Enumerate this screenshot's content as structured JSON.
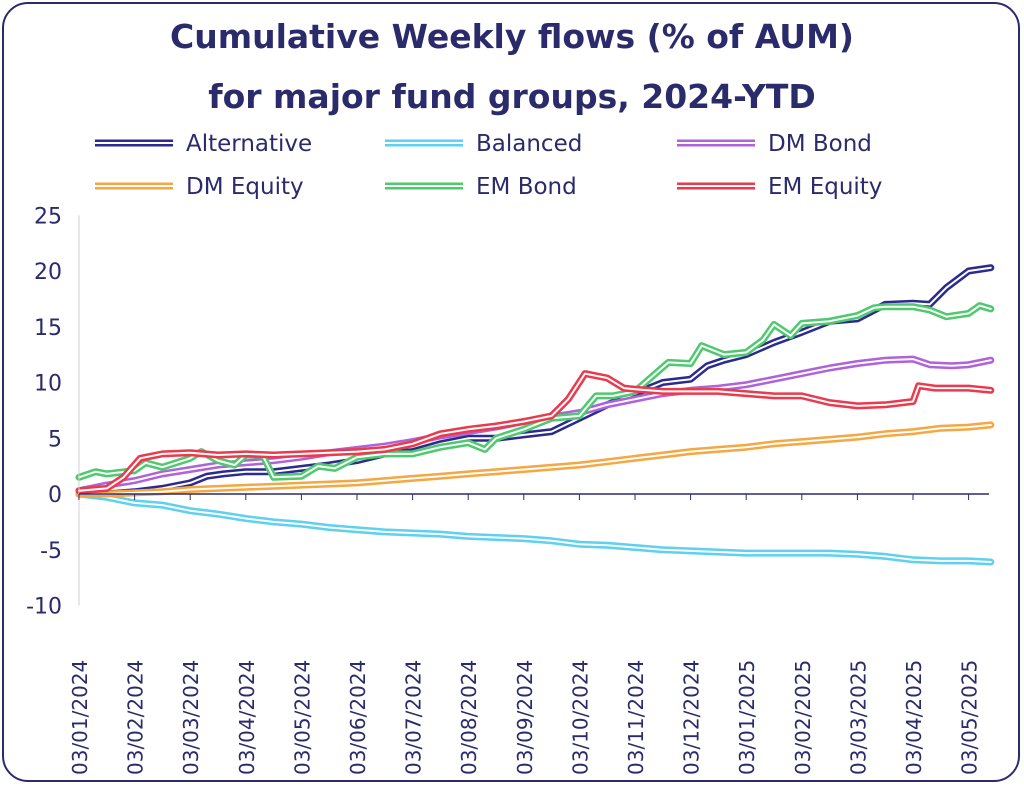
{
  "chart_data": {
    "type": "line",
    "title_lines": [
      "Cumulative Weekly flows (% of AUM)",
      "for major fund groups, 2024-YTD"
    ],
    "xlabel": "",
    "ylabel": "",
    "ylim": [
      -10,
      25
    ],
    "yticks": [
      25,
      20,
      15,
      10,
      5,
      0,
      -5,
      -10
    ],
    "grid": false,
    "legend_position": "top",
    "x_tick_labels": [
      "03/01/2024",
      "03/02/2024",
      "03/03/2024",
      "03/04/2024",
      "03/05/2024",
      "03/06/2024",
      "03/07/2024",
      "03/08/2024",
      "03/09/2024",
      "03/10/2024",
      "03/11/2024",
      "03/12/2024",
      "03/01/2025",
      "03/02/2025",
      "03/03/2025",
      "03/04/2025",
      "03/05/2025"
    ],
    "series": [
      {
        "name": "Alternative",
        "color": "#2b2a8f",
        "x_end": 16.4,
        "points": [
          [
            0,
            0
          ],
          [
            0.5,
            0
          ],
          [
            1,
            0.2
          ],
          [
            1.5,
            0.5
          ],
          [
            2,
            1
          ],
          [
            2.3,
            1.6
          ],
          [
            2.6,
            1.8
          ],
          [
            3,
            2
          ],
          [
            3.5,
            2
          ],
          [
            4,
            2.3
          ],
          [
            4.5,
            2.6
          ],
          [
            5,
            3
          ],
          [
            5.5,
            3.6
          ],
          [
            6,
            3.8
          ],
          [
            6.5,
            4.5
          ],
          [
            7,
            5
          ],
          [
            7.5,
            5
          ],
          [
            8,
            5.3
          ],
          [
            8.5,
            5.6
          ],
          [
            9,
            6.8
          ],
          [
            9.5,
            8
          ],
          [
            10,
            9
          ],
          [
            10.5,
            10
          ],
          [
            11,
            10.3
          ],
          [
            11.3,
            11.5
          ],
          [
            11.6,
            12
          ],
          [
            12,
            12.5
          ],
          [
            12.5,
            13.6
          ],
          [
            13,
            14.5
          ],
          [
            13.5,
            15.5
          ],
          [
            14,
            15.7
          ],
          [
            14.5,
            17
          ],
          [
            15,
            17.1
          ],
          [
            15.3,
            17
          ],
          [
            15.6,
            18.5
          ],
          [
            16,
            20
          ],
          [
            16.4,
            20.3
          ]
        ]
      },
      {
        "name": "Balanced",
        "color": "#5ed0f0",
        "x_end": 16.4,
        "points": [
          [
            0,
            0
          ],
          [
            0.5,
            -0.3
          ],
          [
            1,
            -0.8
          ],
          [
            1.5,
            -1
          ],
          [
            2,
            -1.5
          ],
          [
            2.5,
            -1.8
          ],
          [
            3,
            -2.2
          ],
          [
            3.5,
            -2.5
          ],
          [
            4,
            -2.7
          ],
          [
            4.5,
            -3
          ],
          [
            5,
            -3.2
          ],
          [
            5.5,
            -3.4
          ],
          [
            6,
            -3.5
          ],
          [
            6.5,
            -3.6
          ],
          [
            7,
            -3.8
          ],
          [
            7.5,
            -3.9
          ],
          [
            8,
            -4
          ],
          [
            8.5,
            -4.2
          ],
          [
            9,
            -4.5
          ],
          [
            9.5,
            -4.6
          ],
          [
            10,
            -4.8
          ],
          [
            10.5,
            -5
          ],
          [
            11,
            -5.1
          ],
          [
            11.5,
            -5.2
          ],
          [
            12,
            -5.3
          ],
          [
            12.5,
            -5.3
          ],
          [
            13,
            -5.3
          ],
          [
            13.5,
            -5.3
          ],
          [
            14,
            -5.4
          ],
          [
            14.5,
            -5.6
          ],
          [
            15,
            -5.9
          ],
          [
            15.5,
            -6
          ],
          [
            16,
            -6
          ],
          [
            16.4,
            -6.1
          ]
        ]
      },
      {
        "name": "DM Bond",
        "color": "#b062d8",
        "x_end": 16.4,
        "points": [
          [
            0,
            0.3
          ],
          [
            0.5,
            0.8
          ],
          [
            1,
            1.2
          ],
          [
            1.5,
            1.8
          ],
          [
            2,
            2.2
          ],
          [
            2.5,
            2.6
          ],
          [
            3,
            2.8
          ],
          [
            3.5,
            3
          ],
          [
            4,
            3.3
          ],
          [
            4.5,
            3.7
          ],
          [
            5,
            4
          ],
          [
            5.5,
            4.3
          ],
          [
            6,
            4.7
          ],
          [
            6.5,
            5.2
          ],
          [
            7,
            5.6
          ],
          [
            7.5,
            6
          ],
          [
            8,
            6.5
          ],
          [
            8.5,
            6.9
          ],
          [
            9,
            7.3
          ],
          [
            9.5,
            8
          ],
          [
            10,
            8.5
          ],
          [
            10.5,
            9
          ],
          [
            11,
            9.3
          ],
          [
            11.5,
            9.5
          ],
          [
            12,
            9.8
          ],
          [
            12.5,
            10.3
          ],
          [
            13,
            10.8
          ],
          [
            13.5,
            11.3
          ],
          [
            14,
            11.7
          ],
          [
            14.5,
            12
          ],
          [
            15,
            12.1
          ],
          [
            15.3,
            11.6
          ],
          [
            15.7,
            11.5
          ],
          [
            16,
            11.6
          ],
          [
            16.4,
            12
          ]
        ]
      },
      {
        "name": "DM Equity",
        "color": "#f5a742",
        "x_end": 16.4,
        "points": [
          [
            0,
            0
          ],
          [
            0.5,
            0
          ],
          [
            1,
            0.1
          ],
          [
            1.5,
            0.2
          ],
          [
            2,
            0.4
          ],
          [
            2.5,
            0.5
          ],
          [
            3,
            0.6
          ],
          [
            3.5,
            0.7
          ],
          [
            4,
            0.8
          ],
          [
            4.5,
            0.9
          ],
          [
            5,
            1
          ],
          [
            5.5,
            1.2
          ],
          [
            6,
            1.4
          ],
          [
            6.5,
            1.6
          ],
          [
            7,
            1.8
          ],
          [
            7.5,
            2
          ],
          [
            8,
            2.2
          ],
          [
            8.5,
            2.4
          ],
          [
            9,
            2.6
          ],
          [
            9.5,
            2.9
          ],
          [
            10,
            3.2
          ],
          [
            10.5,
            3.5
          ],
          [
            11,
            3.8
          ],
          [
            11.5,
            4
          ],
          [
            12,
            4.2
          ],
          [
            12.5,
            4.5
          ],
          [
            13,
            4.7
          ],
          [
            13.5,
            4.9
          ],
          [
            14,
            5.1
          ],
          [
            14.5,
            5.4
          ],
          [
            15,
            5.6
          ],
          [
            15.5,
            5.9
          ],
          [
            16,
            6
          ],
          [
            16.4,
            6.2
          ]
        ]
      },
      {
        "name": "EM Bond",
        "color": "#4ec96e",
        "x_end": 16.4,
        "points": [
          [
            0,
            1.5
          ],
          [
            0.3,
            2
          ],
          [
            0.5,
            1.8
          ],
          [
            1,
            2.1
          ],
          [
            1.2,
            2.8
          ],
          [
            1.5,
            2.4
          ],
          [
            2,
            3.2
          ],
          [
            2.2,
            3.8
          ],
          [
            2.5,
            3
          ],
          [
            2.8,
            2.6
          ],
          [
            3,
            3.5
          ],
          [
            3.3,
            3.5
          ],
          [
            3.5,
            1.5
          ],
          [
            4,
            1.6
          ],
          [
            4.3,
            2.5
          ],
          [
            4.6,
            2.3
          ],
          [
            5,
            3.3
          ],
          [
            5.5,
            3.6
          ],
          [
            6,
            3.6
          ],
          [
            6.5,
            4.2
          ],
          [
            7,
            4.6
          ],
          [
            7.3,
            4
          ],
          [
            7.5,
            5
          ],
          [
            8,
            5.8
          ],
          [
            8.5,
            6.8
          ],
          [
            9,
            7
          ],
          [
            9.3,
            8.8
          ],
          [
            9.6,
            8.8
          ],
          [
            10,
            9.2
          ],
          [
            10.3,
            10.5
          ],
          [
            10.6,
            11.8
          ],
          [
            11,
            11.7
          ],
          [
            11.2,
            13.3
          ],
          [
            11.6,
            12.5
          ],
          [
            12,
            12.7
          ],
          [
            12.3,
            13.8
          ],
          [
            12.5,
            15.2
          ],
          [
            12.8,
            14.2
          ],
          [
            13,
            15.3
          ],
          [
            13.5,
            15.5
          ],
          [
            14,
            16
          ],
          [
            14.3,
            16.7
          ],
          [
            14.5,
            16.8
          ],
          [
            15,
            16.8
          ],
          [
            15.3,
            16.5
          ],
          [
            15.6,
            15.9
          ],
          [
            16,
            16.2
          ],
          [
            16.2,
            16.9
          ],
          [
            16.4,
            16.6
          ]
        ]
      },
      {
        "name": "EM Equity",
        "color": "#ea3a4e",
        "x_end": 16.4,
        "points": [
          [
            0,
            0.3
          ],
          [
            0.5,
            0.5
          ],
          [
            0.8,
            1.5
          ],
          [
            1.1,
            3.2
          ],
          [
            1.5,
            3.6
          ],
          [
            2,
            3.7
          ],
          [
            2.5,
            3.5
          ],
          [
            3,
            3.6
          ],
          [
            3.5,
            3.5
          ],
          [
            4,
            3.6
          ],
          [
            4.5,
            3.7
          ],
          [
            5,
            3.8
          ],
          [
            5.5,
            4
          ],
          [
            6,
            4.5
          ],
          [
            6.5,
            5.4
          ],
          [
            7,
            5.8
          ],
          [
            7.5,
            6.1
          ],
          [
            8,
            6.5
          ],
          [
            8.5,
            7
          ],
          [
            8.8,
            8.5
          ],
          [
            9.1,
            10.8
          ],
          [
            9.5,
            10.4
          ],
          [
            9.8,
            9.5
          ],
          [
            10,
            9.4
          ],
          [
            10.5,
            9.2
          ],
          [
            11,
            9.2
          ],
          [
            11.5,
            9.2
          ],
          [
            12,
            9
          ],
          [
            12.5,
            8.8
          ],
          [
            13,
            8.8
          ],
          [
            13.5,
            8.2
          ],
          [
            14,
            7.9
          ],
          [
            14.5,
            8
          ],
          [
            15,
            8.3
          ],
          [
            15.1,
            9.7
          ],
          [
            15.4,
            9.5
          ],
          [
            15.7,
            9.5
          ],
          [
            16,
            9.5
          ],
          [
            16.4,
            9.3
          ]
        ]
      }
    ]
  }
}
